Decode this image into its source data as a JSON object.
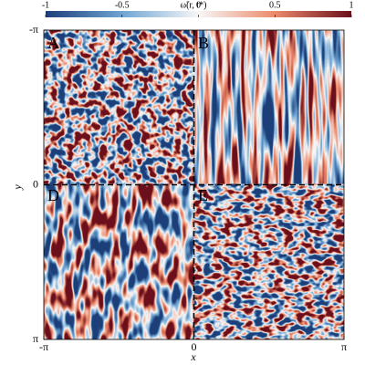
{
  "chart_data": {
    "type": "heatmap",
    "colorbar_label": "ω̃(r, t*)",
    "colorbar_lim": [
      -1,
      1
    ],
    "colorbar_ticks": [
      -1,
      -0.5,
      0,
      0.5,
      1
    ],
    "xlabel": "x",
    "ylabel": "y",
    "xlim": [
      -3.141592653589793,
      3.141592653589793
    ],
    "xticks": [
      {
        "value": -3.141592653589793,
        "label": "-π"
      },
      0,
      {
        "value": 3.141592653589793,
        "label": "π"
      }
    ],
    "ylim": [
      -3.141592653589793,
      3.141592653589793
    ],
    "yticks": [
      {
        "value": -3.141592653589793,
        "label": "-π"
      },
      0,
      {
        "value": 3.141592653589793,
        "label": "π"
      }
    ],
    "y_inverted": true,
    "panel_labels": [
      "A",
      "B",
      "D",
      "E"
    ]
  }
}
